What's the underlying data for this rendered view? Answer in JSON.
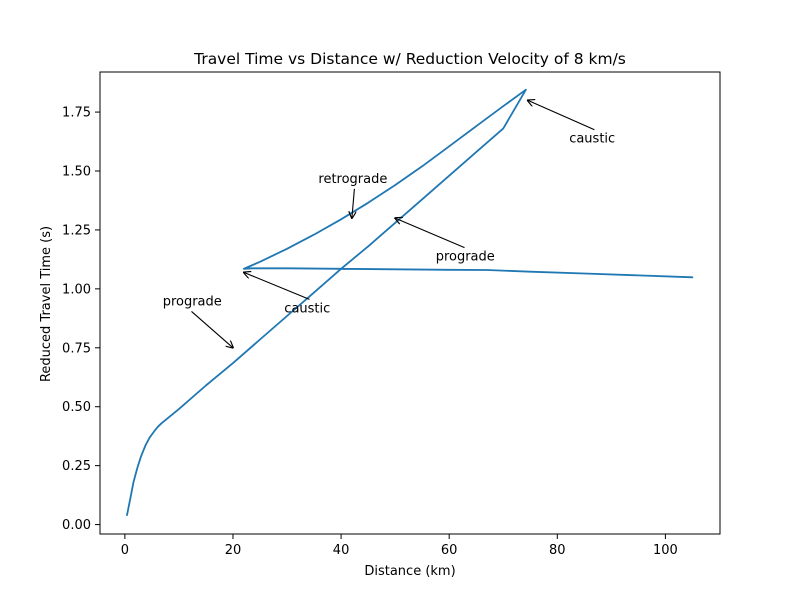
{
  "chart_data": {
    "type": "line",
    "title": "Travel Time vs Distance w/ Reduction Velocity of 8 km/s",
    "xlabel": "Distance (km)",
    "ylabel": "Reduced Travel Time (s)",
    "xlim": [
      -4.6,
      110.1
    ],
    "ylim": [
      -0.04,
      1.92
    ],
    "xticks": [
      0,
      20,
      40,
      60,
      80,
      100
    ],
    "yticks": [
      0.0,
      0.25,
      0.5,
      0.75,
      1.0,
      1.25,
      1.5,
      1.75
    ],
    "ytick_labels": [
      "0.00",
      "0.25",
      "0.50",
      "0.75",
      "1.00",
      "1.25",
      "1.50",
      "1.75"
    ],
    "grid": false,
    "series": [
      {
        "color": "#1f77b4",
        "x": [
          0.4,
          1.0,
          1.6,
          2.3,
          3.0,
          3.8,
          4.6,
          5.4,
          6.1,
          6.8,
          10.0,
          15.0,
          20.0,
          25.0,
          30.0,
          35.0,
          40.0,
          45.0,
          50.0,
          55.0,
          60.0,
          65.0,
          70.0,
          74.2,
          70.0,
          65.0,
          60.0,
          55.0,
          50.0,
          45.0,
          40.0,
          35.0,
          30.0,
          25.0,
          23.0,
          22.0,
          23.5,
          30.0,
          40.0,
          50.0,
          60.0,
          67.0,
          75.0,
          85.0,
          95.0,
          105.0
        ],
        "y": [
          0.04,
          0.11,
          0.18,
          0.24,
          0.29,
          0.335,
          0.37,
          0.395,
          0.415,
          0.43,
          0.49,
          0.59,
          0.685,
          0.785,
          0.885,
          0.985,
          1.085,
          1.18,
          1.28,
          1.38,
          1.48,
          1.58,
          1.68,
          1.845,
          1.775,
          1.69,
          1.605,
          1.52,
          1.44,
          1.365,
          1.295,
          1.23,
          1.17,
          1.115,
          1.095,
          1.085,
          1.087,
          1.087,
          1.085,
          1.083,
          1.081,
          1.08,
          1.073,
          1.065,
          1.057,
          1.049
        ]
      }
    ],
    "annotations": [
      {
        "text": "caustic",
        "x": 82.2,
        "y": 1.62,
        "target_x": 74.5,
        "target_y": 1.8
      },
      {
        "text": "retrograde",
        "x": 35.8,
        "y": 1.45,
        "target_x": 42.0,
        "target_y": 1.3
      },
      {
        "text": "prograde",
        "x": 57.5,
        "y": 1.12,
        "target_x": 50.0,
        "target_y": 1.3
      },
      {
        "text": "caustic",
        "x": 29.5,
        "y": 0.9,
        "target_x": 22.0,
        "target_y": 1.07
      },
      {
        "text": "prograde",
        "x": 7.0,
        "y": 0.93,
        "target_x": 20.0,
        "target_y": 0.75
      }
    ]
  }
}
